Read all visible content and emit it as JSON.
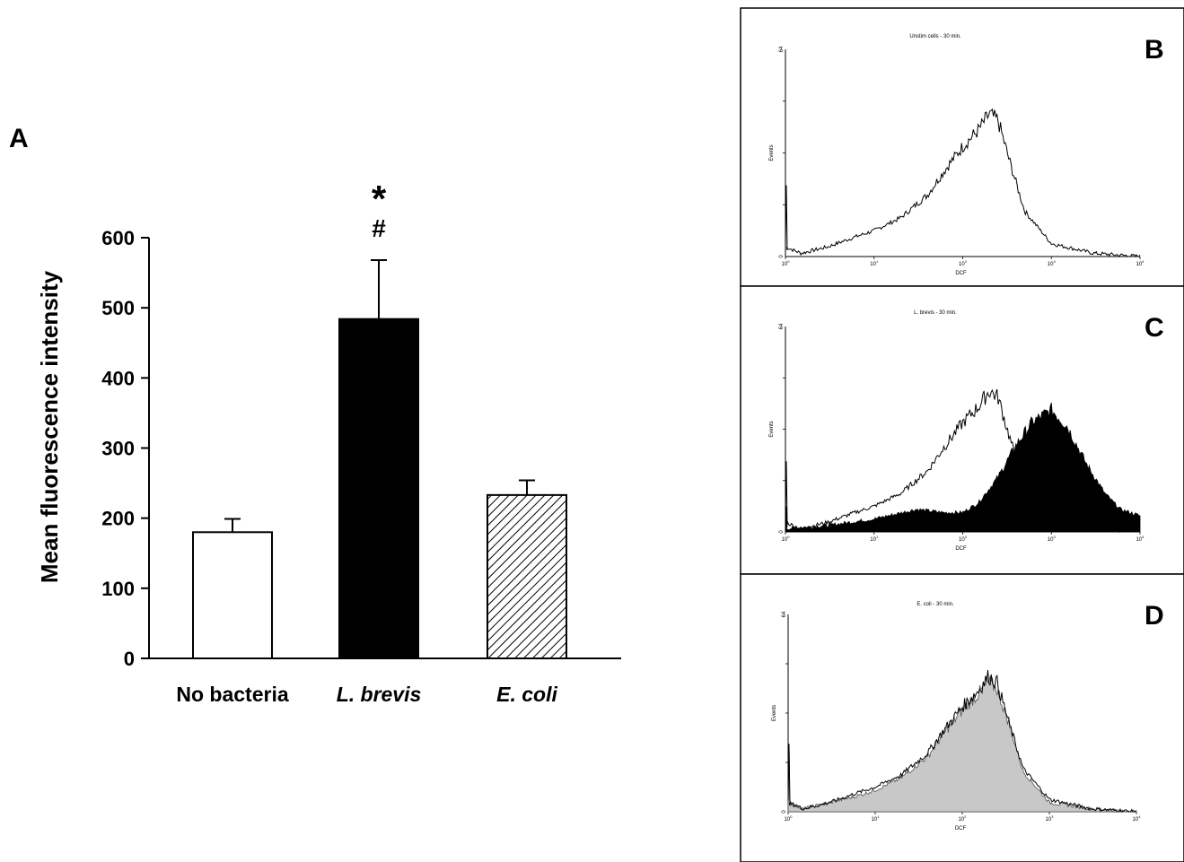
{
  "chart_data": [
    {
      "panel": "A",
      "type": "bar",
      "ylabel": "Mean fluorescence intensity",
      "categories": [
        "No bacteria",
        "L. brevis",
        "E. coli"
      ],
      "values": [
        180,
        484,
        233
      ],
      "errors": [
        19,
        84,
        21
      ],
      "fills": [
        "white",
        "black",
        "hatched"
      ],
      "annotations": [
        {
          "category": "L. brevis",
          "symbols": [
            "*",
            "#"
          ]
        }
      ],
      "ylim": [
        0,
        600
      ],
      "yticks": [
        0,
        100,
        200,
        300,
        400,
        500,
        600
      ]
    },
    {
      "panel": "B",
      "type": "area",
      "title": "Unstim cells - 30 min.",
      "xlabel": "DCF",
      "ylabel": "Events",
      "xscale": "log",
      "xlim": [
        1,
        10000
      ],
      "ylim": [
        0,
        64
      ],
      "yticks": [
        "0",
        "64"
      ],
      "xticks": [
        "10^0",
        "10^1",
        "10^2",
        "10^3",
        "10^4"
      ],
      "series": [
        {
          "style": "outline",
          "x": [
            1,
            1.5,
            3,
            6,
            10,
            20,
            40,
            60,
            100,
            150,
            200,
            250,
            350,
            500,
            1000,
            3000,
            10000
          ],
          "y": [
            3,
            1,
            3,
            6,
            8,
            12,
            19,
            26,
            34,
            39,
            44,
            42,
            28,
            14,
            4,
            1,
            0
          ]
        }
      ]
    },
    {
      "panel": "C",
      "type": "area",
      "title": "L. brevis - 30 min.",
      "xlabel": "DCF",
      "ylabel": "Events",
      "xscale": "log",
      "xlim": [
        1,
        10000
      ],
      "ylim": [
        0,
        64
      ],
      "yticks": [
        "0",
        "64"
      ],
      "xticks": [
        "10^0",
        "10^1",
        "10^2",
        "10^3",
        "10^4"
      ],
      "series": [
        {
          "style": "outline",
          "x": [
            1,
            1.5,
            3,
            6,
            10,
            20,
            40,
            60,
            100,
            150,
            200,
            250,
            350,
            500,
            1000,
            3000,
            10000
          ],
          "y": [
            3,
            1,
            3,
            6,
            8,
            12,
            19,
            26,
            34,
            39,
            44,
            42,
            28,
            14,
            4,
            1,
            0
          ]
        },
        {
          "style": "filled-black",
          "x": [
            1,
            3,
            10,
            30,
            60,
            100,
            150,
            250,
            400,
            600,
            1000,
            1500,
            2500,
            4000,
            6000,
            10000
          ],
          "y": [
            1,
            2,
            4,
            7,
            6,
            6,
            9,
            17,
            27,
            34,
            38,
            33,
            21,
            12,
            7,
            5
          ]
        }
      ]
    },
    {
      "panel": "D",
      "type": "area",
      "title": "E. coli - 30 min.",
      "xlabel": "DCF",
      "ylabel": "Events",
      "xscale": "log",
      "xlim": [
        1,
        10000
      ],
      "ylim": [
        0,
        64
      ],
      "yticks": [
        "0",
        "64"
      ],
      "xticks": [
        "10^0",
        "10^1",
        "10^2",
        "10^3",
        "10^4"
      ],
      "series": [
        {
          "style": "outline",
          "x": [
            1,
            1.5,
            3,
            6,
            10,
            20,
            40,
            60,
            100,
            150,
            200,
            250,
            350,
            500,
            1000,
            3000,
            10000
          ],
          "y": [
            3,
            1,
            3,
            6,
            8,
            12,
            19,
            26,
            34,
            39,
            44,
            42,
            28,
            14,
            4,
            1,
            0
          ]
        },
        {
          "style": "filled-gray",
          "x": [
            1,
            1.5,
            3,
            6,
            10,
            20,
            40,
            60,
            100,
            150,
            200,
            250,
            350,
            500,
            1000,
            3000,
            10000
          ],
          "y": [
            3,
            1,
            3,
            5,
            7,
            11,
            18,
            25,
            33,
            38,
            42,
            40,
            28,
            13,
            3,
            1,
            0
          ]
        }
      ]
    }
  ],
  "labels": {
    "panel_a": "A",
    "panel_b": "B",
    "panel_c": "C",
    "panel_d": "D",
    "tick_exponents": [
      "0",
      "1",
      "2",
      "3",
      "4"
    ],
    "tick_base": "10"
  }
}
